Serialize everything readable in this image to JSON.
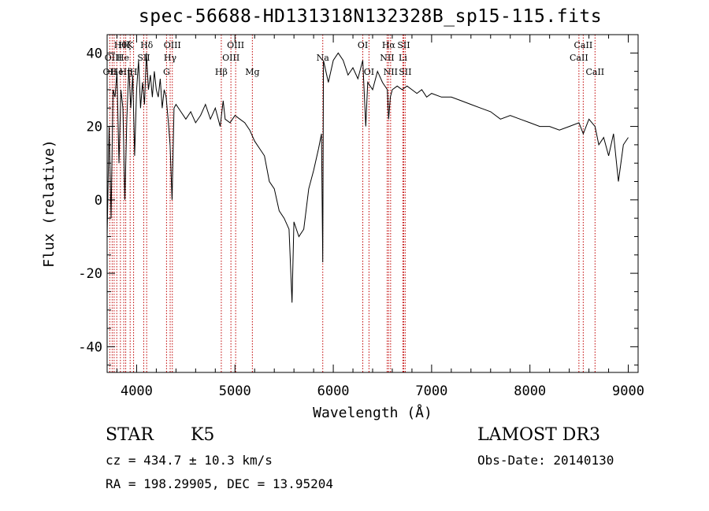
{
  "chart_data": {
    "type": "line",
    "title": "spec-56688-HD131318N132328B_sp15-115.fits",
    "xlabel": "Wavelength (Å)",
    "ylabel": "Flux (relative)",
    "xlim": [
      3700,
      9100
    ],
    "ylim": [
      -47,
      45
    ],
    "xticks": [
      4000,
      5000,
      6000,
      7000,
      8000,
      9000
    ],
    "yticks": [
      -40,
      -20,
      0,
      20,
      40
    ],
    "grid": false,
    "line_color": "#000000",
    "marker_color": "#c00000",
    "series": [
      {
        "x": [
          3700,
          3720,
          3740,
          3760,
          3780,
          3800,
          3820,
          3840,
          3860,
          3880,
          3900,
          3920,
          3940,
          3960,
          3980,
          4000,
          4020,
          4040,
          4060,
          4080,
          4100,
          4120,
          4140,
          4160,
          4180,
          4200,
          4220,
          4240,
          4260,
          4280,
          4300,
          4320,
          4340,
          4360,
          4380,
          4400,
          4450,
          4500,
          4550,
          4600,
          4650,
          4700,
          4750,
          4800,
          4850,
          4880,
          4900,
          4950,
          5000,
          5050,
          5100,
          5150,
          5200,
          5250,
          5300,
          5350,
          5400,
          5450,
          5500,
          5550,
          5580,
          5600,
          5650,
          5700,
          5750,
          5800,
          5850,
          5880,
          5893,
          5900,
          5950,
          6000,
          6050,
          6100,
          6150,
          6200,
          6250,
          6300,
          6330,
          6350,
          6400,
          6450,
          6500,
          6550,
          6563,
          6580,
          6600,
          6650,
          6700,
          6750,
          6800,
          6850,
          6900,
          6950,
          7000,
          7100,
          7200,
          7300,
          7400,
          7500,
          7600,
          7700,
          7800,
          7900,
          8000,
          8100,
          8200,
          8300,
          8400,
          8498,
          8542,
          8600,
          8662,
          8700,
          8750,
          8800,
          8850,
          8900,
          8950,
          9000
        ],
        "y": [
          -10,
          20,
          -5,
          30,
          28,
          35,
          10,
          30,
          25,
          0,
          22,
          36,
          25,
          34,
          12,
          30,
          38,
          25,
          32,
          26,
          40,
          30,
          34,
          28,
          35,
          30,
          28,
          33,
          25,
          30,
          28,
          22,
          15,
          0,
          25,
          26,
          24,
          22,
          24,
          21,
          23,
          26,
          22,
          25,
          20,
          27,
          22,
          21,
          23,
          22,
          21,
          19,
          16,
          14,
          12,
          5,
          3,
          -3,
          -5,
          -8,
          -28,
          -6,
          -10,
          -8,
          3,
          8,
          14,
          18,
          -17,
          38,
          32,
          38,
          40,
          38,
          34,
          36,
          33,
          38,
          20,
          32,
          30,
          35,
          32,
          30,
          22,
          28,
          30,
          31,
          30,
          31,
          30,
          29,
          30,
          28,
          29,
          28,
          28,
          27,
          26,
          25,
          24,
          22,
          23,
          22,
          21,
          20,
          20,
          19,
          20,
          21,
          18,
          22,
          20,
          15,
          17,
          12,
          18,
          5,
          15,
          17
        ]
      }
    ],
    "lines": [
      {
        "wl": 3727,
        "label": "OII",
        "row": 3
      },
      {
        "wl": 3751,
        "label": "",
        "row": 0
      },
      {
        "wl": 3771,
        "label": "",
        "row": 0
      },
      {
        "wl": 3798,
        "label": "",
        "row": 0
      },
      {
        "wl": 3835,
        "label": "Hθ",
        "row": 1
      },
      {
        "wl": 3869,
        "label": "",
        "row": 0
      },
      {
        "wl": 3889,
        "label": "Hη",
        "row": 3
      },
      {
        "wl": 3934,
        "label": "K",
        "row": 1
      },
      {
        "wl": 3969,
        "label": "H",
        "row": 3
      },
      {
        "wl": 4072,
        "label": "SII",
        "row": 2
      },
      {
        "wl": 4102,
        "label": "Hδ",
        "row": 1
      },
      {
        "wl": 4304,
        "label": "G",
        "row": 3
      },
      {
        "wl": 4341,
        "label": "Hγ",
        "row": 2
      },
      {
        "wl": 4363,
        "label": "OIII",
        "row": 1
      },
      {
        "wl": 4861,
        "label": "Hβ",
        "row": 3
      },
      {
        "wl": 4959,
        "label": "OIII",
        "row": 2
      },
      {
        "wl": 5007,
        "label": "OIII",
        "row": 1
      },
      {
        "wl": 5177,
        "label": "Mg",
        "row": 3
      },
      {
        "wl": 5893,
        "label": "Na",
        "row": 2
      },
      {
        "wl": 6300,
        "label": "OI",
        "row": 1
      },
      {
        "wl": 6363,
        "label": "OI",
        "row": 3
      },
      {
        "wl": 6548,
        "label": "NII",
        "row": 2
      },
      {
        "wl": 6563,
        "label": "Hα",
        "row": 1
      },
      {
        "wl": 6583,
        "label": "NII",
        "row": 3
      },
      {
        "wl": 6708,
        "label": "Li",
        "row": 2
      },
      {
        "wl": 6716,
        "label": "SII",
        "row": 1
      },
      {
        "wl": 6731,
        "label": "SII",
        "row": 3
      },
      {
        "wl": 8498,
        "label": "CaII",
        "row": 2
      },
      {
        "wl": 8542,
        "label": "CaII",
        "row": 1
      },
      {
        "wl": 8662,
        "label": "CaII",
        "row": 3
      }
    ]
  },
  "extra_labels": {
    "row2_a": "OIII",
    "row2_b": "He",
    "row1_b": "Hζ",
    "row1_c": "He"
  },
  "footer": {
    "object_type": "STAR",
    "subclass": "K5",
    "survey": "LAMOST DR3",
    "cz": "cz = 434.7 ± 10.3 km/s",
    "obs_date": "Obs-Date: 20140130",
    "coords": "RA = 198.29905, DEC =  13.95204"
  }
}
